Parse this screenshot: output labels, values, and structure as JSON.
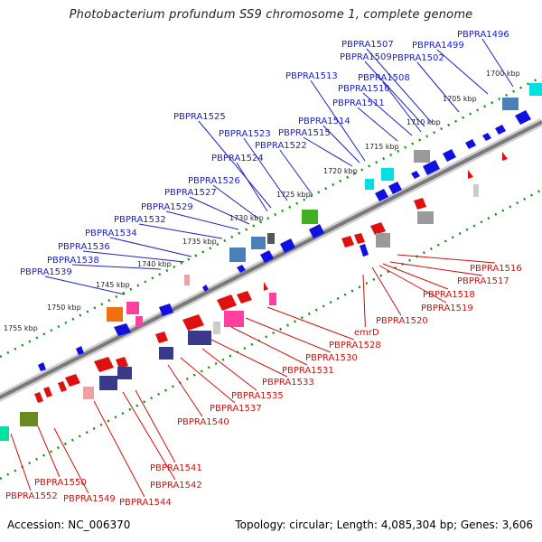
{
  "title": "Photobacterium profundum SS9 chromosome 1, complete genome",
  "footer": {
    "accession_label": "Accession:",
    "accession": "NC_006370",
    "topology_label": "Topology:",
    "topology": "circular",
    "length_label": "Length:",
    "length": "4,085,304 bp",
    "genes_label": "Genes:",
    "genes": "3,606"
  },
  "colors": {
    "backbone": "#888888",
    "forward_label": "#2020c0",
    "reverse_label": "#d01010",
    "tick": "#1a8a1a"
  },
  "kbp_ticks": [
    "1700 kbp",
    "1705 kbp",
    "1710 kbp",
    "1715 kbp",
    "1720 kbp",
    "1725 kbp",
    "1730 kbp",
    "1735 kbp",
    "1740 kbp",
    "1745 kbp",
    "1750 kbp",
    "1755 kbp"
  ],
  "forward_labels": [
    "PBPRA1496",
    "PBPRA1499",
    "PBPRA1502",
    "PBPRA1507",
    "PBPRA1509",
    "PBPRA1508",
    "PBPRA1510",
    "PBPRA1511",
    "PBPRA1513",
    "PBPRA1514",
    "PBPRA1515",
    "PBPRA1525",
    "PBPRA1523",
    "PBPRA1522",
    "PBPRA1524",
    "PBPRA1526",
    "PBPRA1527",
    "PBPRA1529",
    "PBPRA1532",
    "PBPRA1534",
    "PBPRA1536",
    "PBPRA1538",
    "PBPRA1539"
  ],
  "reverse_labels": [
    "PBPRA1516",
    "PBPRA1517",
    "PBPRA1518",
    "PBPRA1519",
    "PBPRA1520",
    "emrD",
    "PBPRA1528",
    "PBPRA1530",
    "PBPRA1531",
    "PBPRA1533",
    "PBPRA1535",
    "PBPRA1537",
    "PBPRA1540",
    "PBPRA1541",
    "PBPRA1542",
    "PBPRA1544",
    "PBPRA1549",
    "PBPRA1550",
    "PBPRA1552"
  ]
}
